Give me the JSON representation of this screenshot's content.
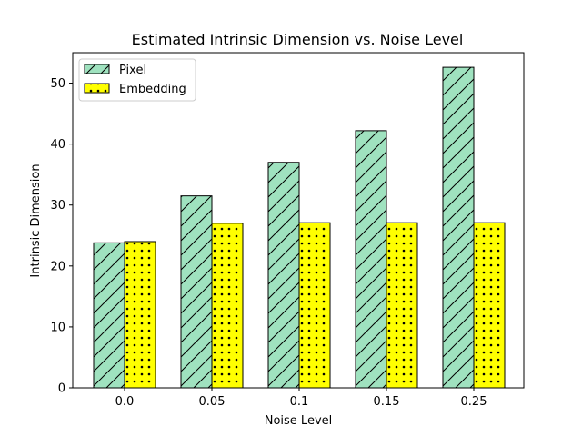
{
  "chart_data": {
    "type": "bar",
    "title": "Estimated Intrinsic Dimension vs. Noise Level",
    "xlabel": "Noise Level",
    "ylabel": "Intrinsic Dimension",
    "categories": [
      "0.0",
      "0.05",
      "0.1",
      "0.15",
      "0.25"
    ],
    "ylim": [
      0,
      55
    ],
    "yticks": [
      0,
      10,
      20,
      30,
      40,
      50
    ],
    "grid": false,
    "legend_position": "top-left",
    "series": [
      {
        "name": "Pixel",
        "values": [
          23.8,
          31.5,
          37.0,
          42.2,
          52.6
        ],
        "color": "#9fe2bf",
        "hatch": "diagonal"
      },
      {
        "name": "Embedding",
        "values": [
          24.0,
          27.0,
          27.1,
          27.1,
          27.1
        ],
        "color": "#ffff00",
        "hatch": "dots"
      }
    ]
  }
}
